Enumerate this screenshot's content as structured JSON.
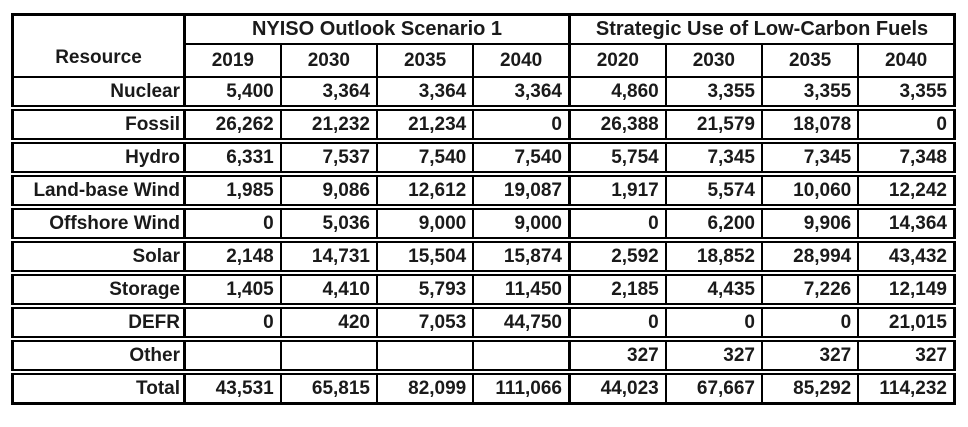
{
  "table": {
    "corner_label": "Resource",
    "groups": [
      {
        "title": "NYISO Outlook Scenario 1",
        "years": [
          "2019",
          "2030",
          "2035",
          "2040"
        ]
      },
      {
        "title": "Strategic Use of Low-Carbon Fuels",
        "years": [
          "2020",
          "2030",
          "2035",
          "2040"
        ]
      }
    ],
    "rows": [
      {
        "label": "Nuclear",
        "values": [
          "5,400",
          "3,364",
          "3,364",
          "3,364",
          "4,860",
          "3,355",
          "3,355",
          "3,355"
        ]
      },
      {
        "label": "Fossil",
        "values": [
          "26,262",
          "21,232",
          "21,234",
          "0",
          "26,388",
          "21,579",
          "18,078",
          "0"
        ]
      },
      {
        "label": "Hydro",
        "values": [
          "6,331",
          "7,537",
          "7,540",
          "7,540",
          "5,754",
          "7,345",
          "7,345",
          "7,348"
        ]
      },
      {
        "label": "Land-base Wind",
        "values": [
          "1,985",
          "9,086",
          "12,612",
          "19,087",
          "1,917",
          "5,574",
          "10,060",
          "12,242"
        ]
      },
      {
        "label": "Offshore Wind",
        "values": [
          "0",
          "5,036",
          "9,000",
          "9,000",
          "0",
          "6,200",
          "9,906",
          "14,364"
        ]
      },
      {
        "label": "Solar",
        "values": [
          "2,148",
          "14,731",
          "15,504",
          "15,874",
          "2,592",
          "18,852",
          "28,994",
          "43,432"
        ]
      },
      {
        "label": "Storage",
        "values": [
          "1,405",
          "4,410",
          "5,793",
          "11,450",
          "2,185",
          "4,435",
          "7,226",
          "12,149"
        ]
      },
      {
        "label": "DEFR",
        "values": [
          "0",
          "420",
          "7,053",
          "44,750",
          "0",
          "0",
          "0",
          "21,015"
        ]
      },
      {
        "label": "Other",
        "values": [
          "",
          "",
          "",
          "",
          "327",
          "327",
          "327",
          "327"
        ]
      },
      {
        "label": "Total",
        "values": [
          "43,531",
          "65,815",
          "82,099",
          "111,066",
          "44,023",
          "67,667",
          "85,292",
          "114,232"
        ]
      }
    ]
  },
  "colors": {
    "background": "#ffffff",
    "border": "#000000",
    "text": "#1a1a1a"
  },
  "chart_data": {
    "type": "table",
    "row_header": "Resource",
    "column_groups": [
      {
        "label": "NYISO Outlook Scenario 1",
        "columns": [
          "2019",
          "2030",
          "2035",
          "2040"
        ]
      },
      {
        "label": "Strategic Use of Low-Carbon Fuels",
        "columns": [
          "2020",
          "2030",
          "2035",
          "2040"
        ]
      }
    ],
    "rows": [
      {
        "resource": "Nuclear",
        "nyiso_outlook_scenario_1": [
          5400,
          3364,
          3364,
          3364
        ],
        "strategic_use_of_low_carbon_fuels": [
          4860,
          3355,
          3355,
          3355
        ]
      },
      {
        "resource": "Fossil",
        "nyiso_outlook_scenario_1": [
          26262,
          21232,
          21234,
          0
        ],
        "strategic_use_of_low_carbon_fuels": [
          26388,
          21579,
          18078,
          0
        ]
      },
      {
        "resource": "Hydro",
        "nyiso_outlook_scenario_1": [
          6331,
          7537,
          7540,
          7540
        ],
        "strategic_use_of_low_carbon_fuels": [
          5754,
          7345,
          7345,
          7348
        ]
      },
      {
        "resource": "Land-base Wind",
        "nyiso_outlook_scenario_1": [
          1985,
          9086,
          12612,
          19087
        ],
        "strategic_use_of_low_carbon_fuels": [
          1917,
          5574,
          10060,
          12242
        ]
      },
      {
        "resource": "Offshore Wind",
        "nyiso_outlook_scenario_1": [
          0,
          5036,
          9000,
          9000
        ],
        "strategic_use_of_low_carbon_fuels": [
          0,
          6200,
          9906,
          14364
        ]
      },
      {
        "resource": "Solar",
        "nyiso_outlook_scenario_1": [
          2148,
          14731,
          15504,
          15874
        ],
        "strategic_use_of_low_carbon_fuels": [
          2592,
          18852,
          28994,
          43432
        ]
      },
      {
        "resource": "Storage",
        "nyiso_outlook_scenario_1": [
          1405,
          4410,
          5793,
          11450
        ],
        "strategic_use_of_low_carbon_fuels": [
          2185,
          4435,
          7226,
          12149
        ]
      },
      {
        "resource": "DEFR",
        "nyiso_outlook_scenario_1": [
          0,
          420,
          7053,
          44750
        ],
        "strategic_use_of_low_carbon_fuels": [
          0,
          0,
          0,
          21015
        ]
      },
      {
        "resource": "Other",
        "nyiso_outlook_scenario_1": [
          null,
          null,
          null,
          null
        ],
        "strategic_use_of_low_carbon_fuels": [
          327,
          327,
          327,
          327
        ]
      },
      {
        "resource": "Total",
        "nyiso_outlook_scenario_1": [
          43531,
          65815,
          82099,
          111066
        ],
        "strategic_use_of_low_carbon_fuels": [
          44023,
          67667,
          85292,
          114232
        ]
      }
    ]
  }
}
